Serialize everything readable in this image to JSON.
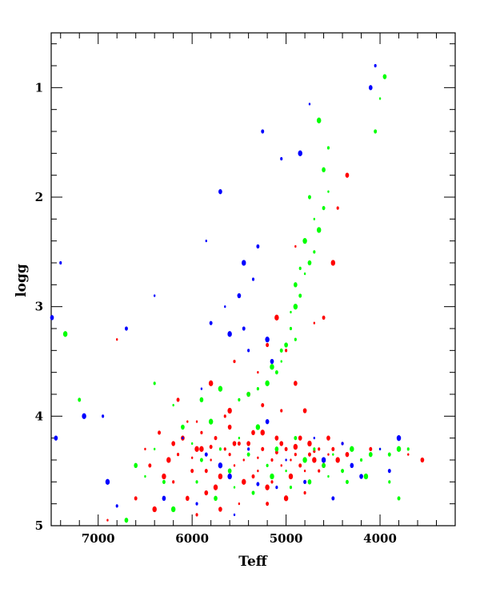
{
  "chart_data": {
    "type": "scatter",
    "title": "",
    "xlabel": "Teff",
    "ylabel": "logg",
    "x_axis_reversed": true,
    "y_axis_reversed": true,
    "xlim": [
      7500,
      3200
    ],
    "ylim": [
      0.5,
      5.0
    ],
    "x_ticks": [
      7000,
      6000,
      5000,
      4000
    ],
    "x_tick_labels": [
      "7000",
      "6000",
      "5000",
      "4000"
    ],
    "y_ticks": [
      1,
      2,
      3,
      4,
      5
    ],
    "y_tick_labels": [
      "1",
      "2",
      "3",
      "4",
      "5"
    ],
    "x_minor_step": 200,
    "y_minor_step": 0.2,
    "grid": false,
    "legend": "none",
    "series": [
      {
        "color": "#ff0000",
        "points": [
          [
            6800,
            3.3
          ],
          [
            6150,
            3.85
          ],
          [
            5800,
            3.7
          ],
          [
            5550,
            3.5
          ],
          [
            5400,
            3.8
          ],
          [
            5300,
            3.6
          ],
          [
            5200,
            3.35
          ],
          [
            5100,
            3.1
          ],
          [
            5000,
            3.4
          ],
          [
            4900,
            3.7
          ],
          [
            4700,
            3.15
          ],
          [
            4600,
            3.1
          ],
          [
            4500,
            2.6
          ],
          [
            4450,
            2.1
          ],
          [
            4350,
            1.8
          ],
          [
            4900,
            2.45
          ],
          [
            5250,
            3.9
          ],
          [
            5600,
            3.95
          ],
          [
            5050,
            3.95
          ],
          [
            4800,
            3.95
          ],
          [
            6500,
            4.3
          ],
          [
            6350,
            4.15
          ],
          [
            6250,
            4.4
          ],
          [
            6200,
            4.6
          ],
          [
            6100,
            4.2
          ],
          [
            6050,
            4.05
          ],
          [
            6000,
            4.5
          ],
          [
            5950,
            4.3
          ],
          [
            5900,
            4.15
          ],
          [
            5850,
            4.7
          ],
          [
            5800,
            4.4
          ],
          [
            5750,
            4.2
          ],
          [
            5700,
            4.55
          ],
          [
            5650,
            4.3
          ],
          [
            5600,
            4.1
          ],
          [
            5550,
            4.45
          ],
          [
            5500,
            4.25
          ],
          [
            5450,
            4.6
          ],
          [
            5400,
            4.35
          ],
          [
            5350,
            4.15
          ],
          [
            5300,
            4.5
          ],
          [
            5250,
            4.3
          ],
          [
            5200,
            4.65
          ],
          [
            5150,
            4.4
          ],
          [
            5100,
            4.2
          ],
          [
            5050,
            4.45
          ],
          [
            5000,
            4.3
          ],
          [
            4950,
            4.55
          ],
          [
            4900,
            4.35
          ],
          [
            4850,
            4.2
          ],
          [
            4800,
            4.5
          ],
          [
            4750,
            4.35
          ],
          [
            4700,
            4.4
          ],
          [
            4650,
            4.3
          ],
          [
            4600,
            4.45
          ],
          [
            4550,
            4.35
          ],
          [
            4500,
            4.3
          ],
          [
            4450,
            4.4
          ],
          [
            4400,
            4.25
          ],
          [
            4350,
            4.35
          ],
          [
            4300,
            4.3
          ],
          [
            6450,
            4.45
          ],
          [
            6300,
            4.55
          ],
          [
            6150,
            4.35
          ],
          [
            6050,
            4.75
          ],
          [
            5950,
            4.05
          ],
          [
            5850,
            4.5
          ],
          [
            5750,
            4.65
          ],
          [
            5650,
            4.0
          ],
          [
            5550,
            4.25
          ],
          [
            5450,
            4.4
          ],
          [
            5350,
            4.55
          ],
          [
            5250,
            4.15
          ],
          [
            5150,
            4.6
          ],
          [
            5050,
            4.25
          ],
          [
            4950,
            4.4
          ],
          [
            4850,
            4.45
          ],
          [
            4750,
            4.25
          ],
          [
            4650,
            4.5
          ],
          [
            4550,
            4.2
          ],
          [
            6900,
            4.95
          ],
          [
            6600,
            4.75
          ],
          [
            6400,
            4.85
          ],
          [
            5950,
            4.9
          ],
          [
            5700,
            4.85
          ],
          [
            5500,
            4.8
          ],
          [
            5200,
            4.8
          ],
          [
            5000,
            4.75
          ],
          [
            4800,
            4.7
          ],
          [
            3550,
            4.4
          ],
          [
            3700,
            4.35
          ],
          [
            4100,
            4.3
          ],
          [
            5900,
            4.3
          ],
          [
            5600,
            4.35
          ],
          [
            5400,
            4.25
          ],
          [
            5300,
            4.38
          ],
          [
            5100,
            4.33
          ],
          [
            4900,
            4.28
          ],
          [
            4700,
            4.32
          ],
          [
            6200,
            4.25
          ],
          [
            6000,
            4.38
          ],
          [
            5800,
            4.28
          ]
        ]
      },
      {
        "color": "#00ff00",
        "points": [
          [
            3950,
            0.9
          ],
          [
            4000,
            1.1
          ],
          [
            4050,
            1.4
          ],
          [
            4650,
            1.3
          ],
          [
            4550,
            1.55
          ],
          [
            4600,
            1.75
          ],
          [
            4550,
            1.95
          ],
          [
            4600,
            2.1
          ],
          [
            4650,
            2.3
          ],
          [
            4700,
            2.5
          ],
          [
            4750,
            2.6
          ],
          [
            4800,
            2.7
          ],
          [
            4850,
            2.9
          ],
          [
            4900,
            3.0
          ],
          [
            4950,
            3.2
          ],
          [
            5000,
            3.35
          ],
          [
            5050,
            3.5
          ],
          [
            5100,
            3.6
          ],
          [
            5200,
            3.7
          ],
          [
            5300,
            3.75
          ],
          [
            5400,
            3.8
          ],
          [
            4700,
            2.2
          ],
          [
            4750,
            2.0
          ],
          [
            4800,
            2.4
          ],
          [
            4850,
            2.65
          ],
          [
            4900,
            2.8
          ],
          [
            4950,
            3.05
          ],
          [
            5050,
            3.4
          ],
          [
            5150,
            3.55
          ],
          [
            4900,
            3.3
          ],
          [
            6100,
            4.1
          ],
          [
            6000,
            4.25
          ],
          [
            5900,
            4.4
          ],
          [
            5800,
            4.05
          ],
          [
            5700,
            4.3
          ],
          [
            5600,
            4.5
          ],
          [
            5500,
            4.2
          ],
          [
            5400,
            4.35
          ],
          [
            5300,
            4.1
          ],
          [
            5200,
            4.45
          ],
          [
            5100,
            4.3
          ],
          [
            5000,
            4.5
          ],
          [
            4900,
            4.2
          ],
          [
            4800,
            4.4
          ],
          [
            4700,
            4.3
          ],
          [
            4600,
            4.45
          ],
          [
            4500,
            4.35
          ],
          [
            4400,
            4.5
          ],
          [
            4300,
            4.3
          ],
          [
            4200,
            4.4
          ],
          [
            4100,
            4.35
          ],
          [
            4000,
            4.3
          ],
          [
            3900,
            4.35
          ],
          [
            3800,
            4.3
          ],
          [
            3700,
            4.3
          ],
          [
            6600,
            4.45
          ],
          [
            6400,
            4.3
          ],
          [
            6300,
            4.6
          ],
          [
            6200,
            4.85
          ],
          [
            5950,
            4.6
          ],
          [
            5750,
            4.75
          ],
          [
            5550,
            4.65
          ],
          [
            5350,
            4.7
          ],
          [
            5150,
            4.55
          ],
          [
            4950,
            4.65
          ],
          [
            4750,
            4.6
          ],
          [
            4550,
            4.55
          ],
          [
            4350,
            4.6
          ],
          [
            4150,
            4.55
          ],
          [
            3900,
            4.6
          ],
          [
            6700,
            4.95
          ],
          [
            6500,
            4.55
          ],
          [
            3800,
            4.75
          ],
          [
            5700,
            3.75
          ],
          [
            5500,
            3.85
          ],
          [
            5900,
            3.85
          ],
          [
            6200,
            3.9
          ],
          [
            7200,
            3.85
          ],
          [
            7350,
            3.25
          ],
          [
            6400,
            3.7
          ]
        ]
      },
      {
        "color": "#0000ff",
        "points": [
          [
            4050,
            0.8
          ],
          [
            4100,
            1.0
          ],
          [
            4750,
            1.15
          ],
          [
            5250,
            1.4
          ],
          [
            4850,
            1.6
          ],
          [
            5050,
            1.65
          ],
          [
            5700,
            1.95
          ],
          [
            5850,
            2.4
          ],
          [
            5300,
            2.45
          ],
          [
            5450,
            2.6
          ],
          [
            5350,
            2.75
          ],
          [
            5500,
            2.9
          ],
          [
            5650,
            3.0
          ],
          [
            5800,
            3.15
          ],
          [
            5600,
            3.25
          ],
          [
            5400,
            3.4
          ],
          [
            5150,
            3.5
          ],
          [
            5900,
            3.75
          ],
          [
            5450,
            3.2
          ],
          [
            5200,
            3.3
          ],
          [
            7400,
            2.6
          ],
          [
            7500,
            3.1
          ],
          [
            6400,
            2.9
          ],
          [
            6700,
            3.2
          ],
          [
            7150,
            4.0
          ],
          [
            6950,
            4.0
          ],
          [
            7450,
            4.2
          ],
          [
            6100,
            4.2
          ],
          [
            5850,
            4.35
          ],
          [
            5600,
            4.55
          ],
          [
            5400,
            4.3
          ],
          [
            5200,
            4.05
          ],
          [
            5000,
            4.4
          ],
          [
            4800,
            4.6
          ],
          [
            4600,
            4.4
          ],
          [
            4400,
            4.25
          ],
          [
            4200,
            4.55
          ],
          [
            4000,
            4.3
          ],
          [
            3900,
            4.5
          ],
          [
            3800,
            4.2
          ],
          [
            5950,
            4.8
          ],
          [
            6300,
            4.75
          ],
          [
            5550,
            4.9
          ],
          [
            4500,
            4.75
          ],
          [
            6900,
            4.6
          ],
          [
            5100,
            4.65
          ],
          [
            4300,
            4.45
          ],
          [
            4700,
            4.2
          ],
          [
            5300,
            4.62
          ],
          [
            5700,
            4.45
          ],
          [
            6800,
            4.82
          ]
        ]
      }
    ]
  }
}
